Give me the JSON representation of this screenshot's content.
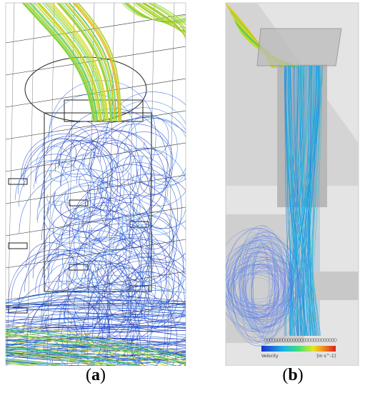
{
  "panels": [
    {
      "open": "(",
      "label": "a",
      "close": ")"
    },
    {
      "open": "(",
      "label": "b",
      "close": ")",
      "legend_title": "Velocity",
      "legend_unit": "[m s^-1]"
    }
  ]
}
